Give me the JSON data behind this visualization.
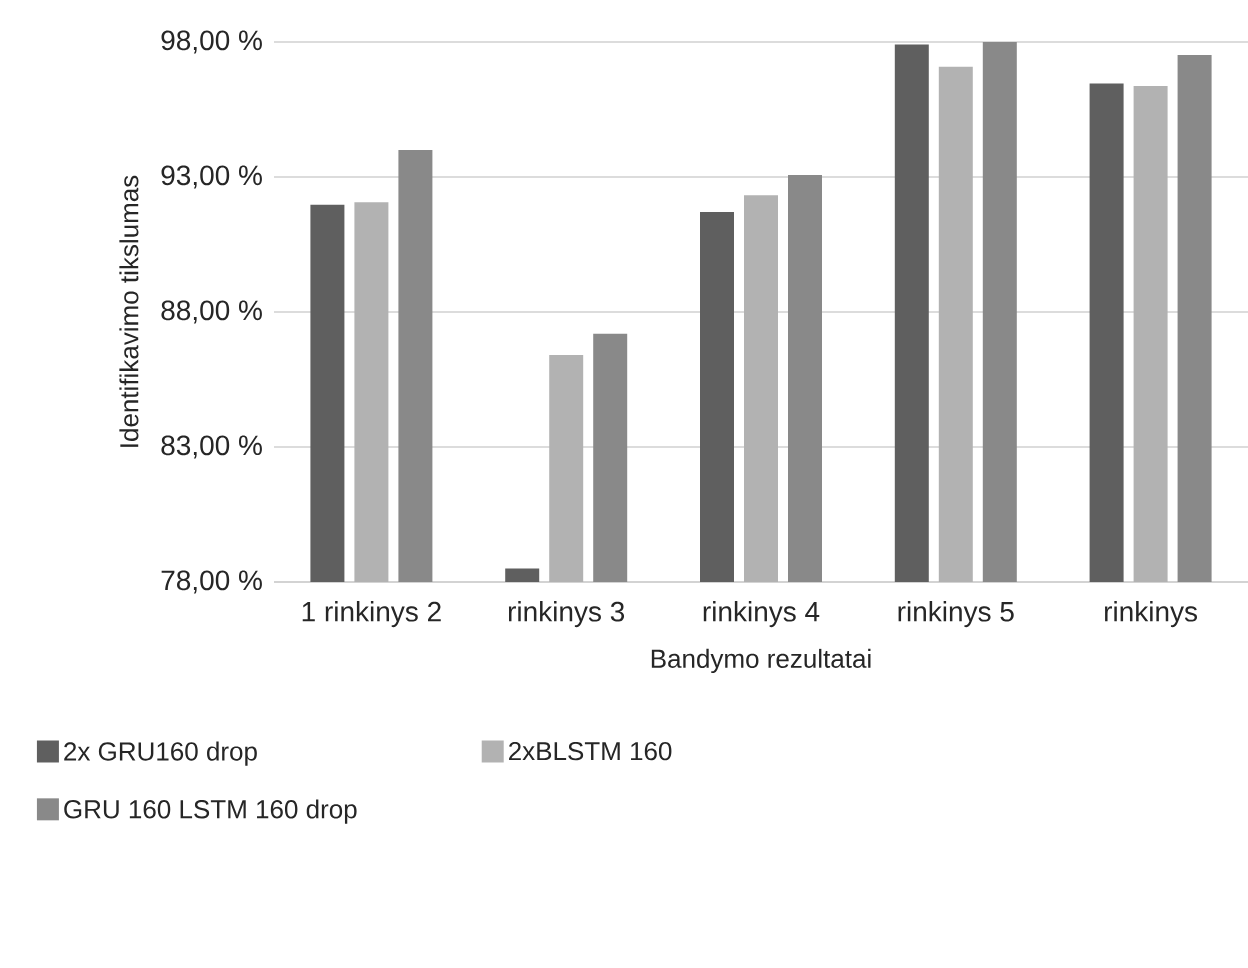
{
  "chart_data": {
    "type": "bar",
    "xlabel": "Bandymo rezultatai",
    "ylabel": "Identifikavimo tikslumas",
    "categories": [
      "1 rinkinys 2",
      "rinkinys 3",
      "rinkinys 4",
      "rinkinys 5",
      "rinkinys"
    ],
    "series": [
      {
        "name": "2x GRU160 drop",
        "color": "#5f5f5f",
        "values": [
          91.97,
          78.5,
          91.7,
          97.91,
          96.46
        ]
      },
      {
        "name": "2xBLSTM 160",
        "color": "#b2b2b2",
        "values": [
          92.06,
          86.41,
          92.32,
          97.08,
          96.37
        ]
      },
      {
        "name": "GRU 160 LSTM 160 drop",
        "color": "#898989",
        "values": [
          94.0,
          87.19,
          93.07,
          98.0,
          97.52
        ]
      }
    ],
    "ylim": [
      78,
      98
    ],
    "yticks": [
      {
        "value": 78,
        "label": "78,00 %"
      },
      {
        "value": 83,
        "label": "83,00 %"
      },
      {
        "value": 88,
        "label": "88,00 %"
      },
      {
        "value": 93,
        "label": "93,00 %"
      },
      {
        "value": 98,
        "label": "98,00 %"
      }
    ],
    "grid": "y",
    "legend": "bottom"
  }
}
